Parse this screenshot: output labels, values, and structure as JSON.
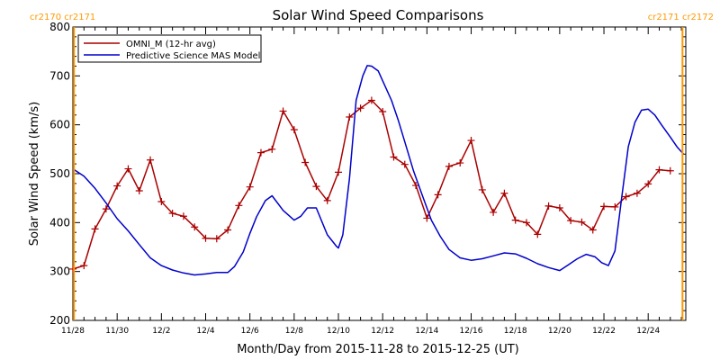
{
  "chart_data": {
    "type": "line",
    "title": "Solar Wind Speed Comparisons",
    "xlabel": "Month/Day from 2015-11-28 to 2015-12-25 (UT)",
    "ylabel": "Solar Wind Speed (km/s)",
    "ylim": [
      200,
      800
    ],
    "xlim_days": [
      0,
      27.7
    ],
    "y_ticks": [
      200,
      300,
      400,
      500,
      600,
      700,
      800
    ],
    "x_ticks": [
      {
        "day": 0,
        "label": "11/28"
      },
      {
        "day": 2,
        "label": "11/30"
      },
      {
        "day": 4,
        "label": "12/2"
      },
      {
        "day": 6,
        "label": "12/4"
      },
      {
        "day": 8,
        "label": "12/6"
      },
      {
        "day": 10,
        "label": "12/8"
      },
      {
        "day": 12,
        "label": "12/10"
      },
      {
        "day": 14,
        "label": "12/12"
      },
      {
        "day": 16,
        "label": "12/14"
      },
      {
        "day": 18,
        "label": "12/16"
      },
      {
        "day": 20,
        "label": "12/18"
      },
      {
        "day": 22,
        "label": "12/20"
      },
      {
        "day": 24,
        "label": "12/22"
      },
      {
        "day": 26,
        "label": "12/24"
      }
    ],
    "carrington_markers": [
      {
        "day": 0.05,
        "label": "cr2170 cr2171",
        "side": "left"
      },
      {
        "day": 27.55,
        "label": "cr2171 cr2172",
        "side": "right"
      }
    ],
    "legend_position": "top-left",
    "series": [
      {
        "name": "OMNI_M (12-hr avg)",
        "color": "#aa0000",
        "marker": "plus",
        "x": [
          0.0,
          0.5,
          1.0,
          1.5,
          2.0,
          2.5,
          3.0,
          3.5,
          4.0,
          4.5,
          5.0,
          5.5,
          6.0,
          6.5,
          7.0,
          7.5,
          8.0,
          8.5,
          9.0,
          9.5,
          10.0,
          10.5,
          11.0,
          11.5,
          12.0,
          12.5,
          13.0,
          13.5,
          14.0,
          14.5,
          15.0,
          15.5,
          16.0,
          16.5,
          17.0,
          17.5,
          18.0,
          18.5,
          19.0,
          19.5,
          20.0,
          20.5,
          21.0,
          21.5,
          22.0,
          22.5,
          23.0,
          23.5,
          24.0,
          24.5,
          25.0,
          25.5,
          26.0,
          26.5,
          27.0
        ],
        "values": [
          305,
          312,
          387,
          428,
          475,
          510,
          465,
          528,
          443,
          419,
          413,
          391,
          368,
          367,
          385,
          435,
          473,
          543,
          550,
          628,
          590,
          523,
          474,
          445,
          503,
          616,
          634,
          650,
          627,
          534,
          519,
          476,
          409,
          457,
          515,
          522,
          568,
          467,
          421,
          460,
          405,
          400,
          376,
          434,
          430,
          404,
          401,
          385,
          433,
          432,
          453,
          460,
          479,
          508,
          506
        ]
      },
      {
        "name": "Predictive Science MAS Model",
        "color": "#0000cc",
        "marker": "none",
        "x": [
          0.0,
          0.5,
          1.0,
          1.5,
          2.0,
          2.5,
          3.0,
          3.5,
          4.0,
          4.5,
          5.0,
          5.5,
          6.0,
          6.5,
          7.0,
          7.3,
          7.7,
          8.0,
          8.3,
          8.7,
          9.0,
          9.5,
          10.0,
          10.3,
          10.6,
          11.0,
          11.5,
          11.9,
          12.0,
          12.2,
          12.5,
          12.8,
          13.1,
          13.3,
          13.5,
          13.8,
          14.0,
          14.4,
          14.7,
          15.0,
          15.4,
          15.8,
          16.2,
          16.6,
          17.0,
          17.5,
          18.0,
          18.5,
          19.0,
          19.5,
          20.0,
          20.5,
          21.0,
          21.5,
          22.0,
          22.4,
          22.8,
          23.2,
          23.6,
          23.9,
          24.2,
          24.5,
          24.8,
          25.1,
          25.4,
          25.7,
          26.0,
          26.3,
          26.6,
          27.0,
          27.3,
          27.6
        ],
        "values": [
          510,
          495,
          470,
          440,
          408,
          383,
          355,
          328,
          312,
          303,
          297,
          293,
          295,
          298,
          298,
          310,
          340,
          378,
          412,
          445,
          455,
          425,
          405,
          413,
          430,
          430,
          375,
          352,
          348,
          375,
          490,
          650,
          700,
          721,
          720,
          710,
          690,
          650,
          610,
          565,
          505,
          455,
          405,
          372,
          345,
          328,
          323,
          326,
          332,
          338,
          336,
          327,
          316,
          308,
          302,
          314,
          326,
          335,
          330,
          318,
          312,
          342,
          450,
          555,
          605,
          630,
          632,
          620,
          600,
          575,
          555,
          540
        ]
      }
    ]
  }
}
